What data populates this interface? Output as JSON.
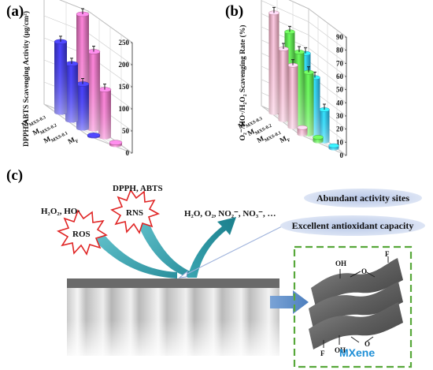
{
  "panels": {
    "a": {
      "label": "(a)"
    },
    "b": {
      "label": "(b)"
    },
    "c": {
      "label": "(c)"
    }
  },
  "chart_data": [
    {
      "type": "bar3d",
      "panel": "a",
      "ylabel": "DPPH/ABTS Scavenging Activity (μg/cm²)",
      "ylim": [
        0,
        250
      ],
      "yticks": [
        "0",
        "50",
        "100",
        "150",
        "200",
        "250"
      ],
      "categories": [
        "Mₓ",
        "Mₘ₃ₛ-0.1",
        "Mₘ₃ₛ-0.2",
        "Mₘ₃ₛ-0.3"
      ],
      "category_labels": [
        "M_F",
        "M_MXS-0.1",
        "M_MXS-0.2",
        "M_MXS-0.3"
      ],
      "series": [
        {
          "name": "DPPH",
          "values": [
            2,
            100,
            128,
            160
          ],
          "color": "#3b35d6"
        },
        {
          "name": "ABTS",
          "values": [
            5,
            107,
            175,
            242
          ],
          "color": "#d46ab0"
        }
      ]
    },
    {
      "type": "bar3d",
      "panel": "b",
      "ylabel": "O₂⁻/HO·/H₂O₂ Scavenging Rate (%)",
      "ylim": [
        0,
        90
      ],
      "yticks": [
        "0",
        "10",
        "20",
        "30",
        "40",
        "50",
        "60",
        "70",
        "80",
        "90"
      ],
      "category_labels": [
        "M_F",
        "M_MXS-0.1",
        "M_MXS-0.2",
        "M_MXS-0.3"
      ],
      "series": [
        {
          "name": "O₂·⁻",
          "values": [
            5,
            47,
            54,
            76
          ],
          "color": "#e9a4b8"
        },
        {
          "name": "HO·",
          "values": [
            3,
            47,
            57,
            67
          ],
          "color": "#57d94a"
        },
        {
          "name": "H₂O₂",
          "values": [
            2,
            24,
            43,
            56
          ],
          "color": "#2bb6e6"
        }
      ]
    }
  ],
  "panel_c": {
    "ros_label": "ROS",
    "rns_label": "RNS",
    "ros_species": "H₂O₂, HO·",
    "rns_species": "DPPH, ABTS",
    "products": "H₂O, O₂, NO₂⁻, NO₃⁻, …",
    "bubble1": "Abundant activity sites",
    "bubble2": "Excellent antioxidant capacity",
    "mxene_title": "MXene",
    "oh_label": "OH",
    "o_label": "O",
    "f_label": "F"
  }
}
